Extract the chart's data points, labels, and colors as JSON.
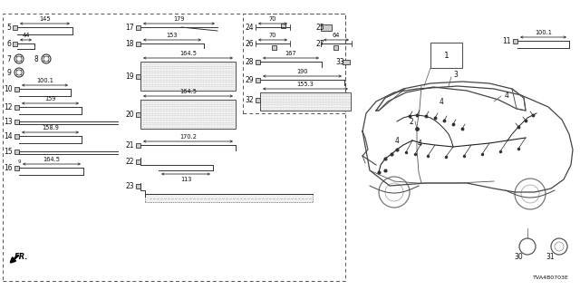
{
  "bg_color": "#ffffff",
  "text_color": "#111111",
  "line_color": "#333333",
  "diagram_code": "TVA4B0703E",
  "fig_w": 6.4,
  "fig_h": 3.2,
  "dpi": 100
}
